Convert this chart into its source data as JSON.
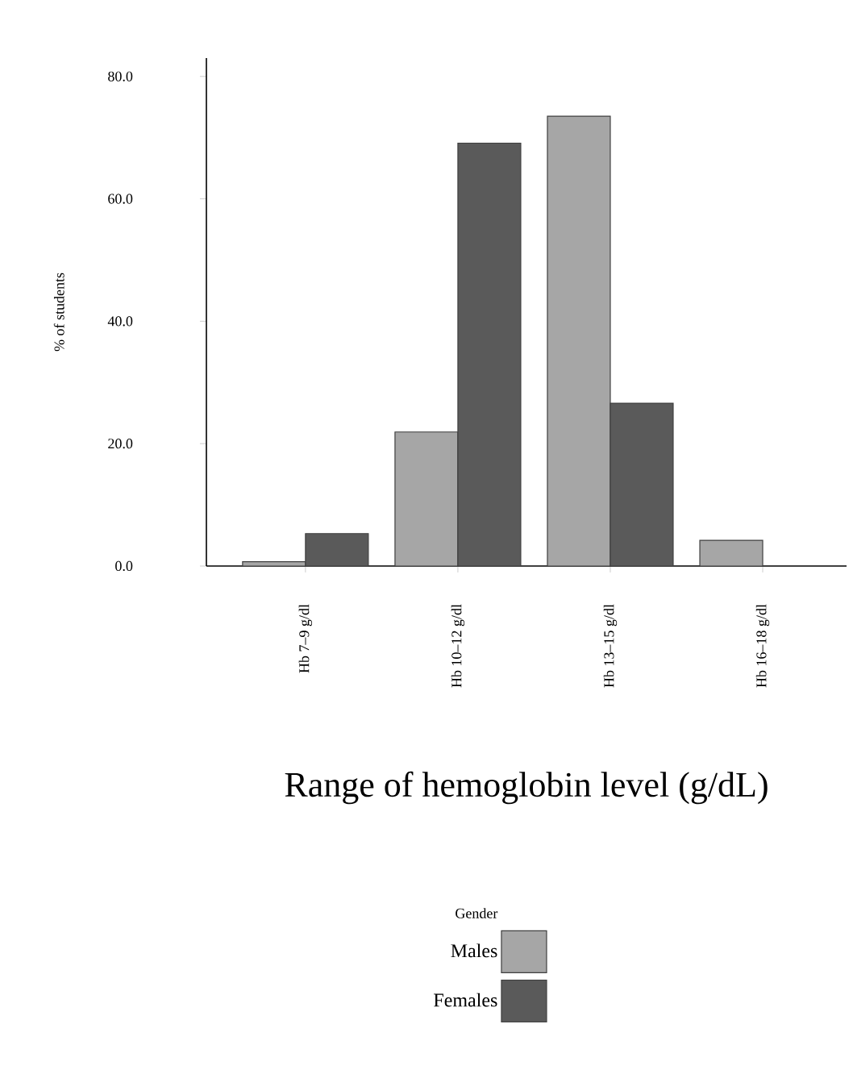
{
  "chart_data": {
    "type": "bar",
    "xlabel": "Range of hemoglobin level (g/dL)",
    "ylabel": "% of students",
    "legend_title": "Gender",
    "categories": [
      "Hb 7–9 g/dl",
      "Hb 10–12 g/dl",
      "Hb 13–15 g/dl",
      "Hb 16–18 g/dl"
    ],
    "series": [
      {
        "name": "Males",
        "color": "#a6a6a6",
        "values": [
          0.7,
          21.9,
          73.5,
          4.2
        ]
      },
      {
        "name": "Females",
        "color": "#5a5a5a",
        "values": [
          5.3,
          69.1,
          26.6,
          null
        ]
      }
    ],
    "ylim": [
      0,
      83
    ],
    "yticks": [
      {
        "value": 0,
        "label": "0.0"
      },
      {
        "value": 20,
        "label": "20.0"
      },
      {
        "value": 40,
        "label": "40.0"
      },
      {
        "value": 60,
        "label": "60.0"
      },
      {
        "value": 80,
        "label": "80.0"
      }
    ],
    "grid": false,
    "legend": "bottom"
  }
}
